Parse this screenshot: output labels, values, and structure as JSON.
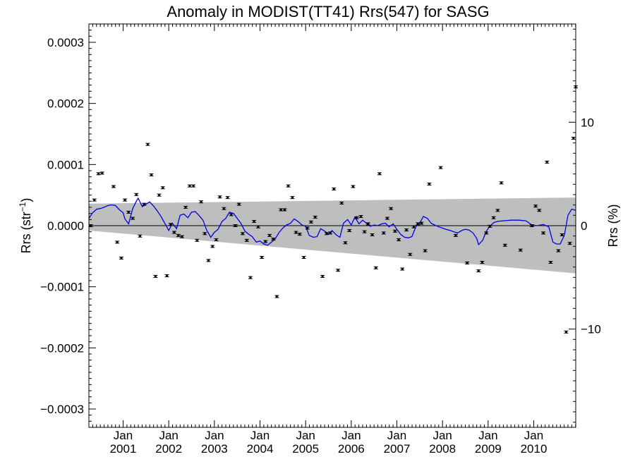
{
  "chart_data": {
    "type": "scatter",
    "title": "Anomaly in MODIST(TT41) Rrs(547) for SASG",
    "ylabel_left": "Rrs (str",
    "ylabel_left_sup": "−1",
    "ylabel_left_close": ")",
    "ylabel_right": "Rrs (%)",
    "ylim_left": [
      -0.00033,
      0.00033
    ],
    "ylim_right": [
      -19.5,
      19.5
    ],
    "xlim": [
      2000.25,
      2010.92
    ],
    "left_ticks": [
      {
        "value": 0.0003,
        "label": "0.0003"
      },
      {
        "value": 0.0002,
        "label": "0.0002"
      },
      {
        "value": 0.0001,
        "label": "0.0001"
      },
      {
        "value": 0.0,
        "label": "0.0000"
      },
      {
        "value": -0.0001,
        "label": "−0.0001"
      },
      {
        "value": -0.0002,
        "label": "−0.0002"
      },
      {
        "value": -0.0003,
        "label": "−0.0003"
      }
    ],
    "right_ticks": [
      {
        "value": 10,
        "label": "10"
      },
      {
        "value": 0,
        "label": "0"
      },
      {
        "value": -10,
        "label": "−10"
      }
    ],
    "x_ticks": [
      {
        "value": 2001.0,
        "month": "Jan",
        "year": "2001"
      },
      {
        "value": 2002.0,
        "month": "Jan",
        "year": "2002"
      },
      {
        "value": 2003.0,
        "month": "Jan",
        "year": "2003"
      },
      {
        "value": 2004.0,
        "month": "Jan",
        "year": "2004"
      },
      {
        "value": 2005.0,
        "month": "Jan",
        "year": "2005"
      },
      {
        "value": 2006.0,
        "month": "Jan",
        "year": "2006"
      },
      {
        "value": 2007.0,
        "month": "Jan",
        "year": "2007"
      },
      {
        "value": 2008.0,
        "month": "Jan",
        "year": "2008"
      },
      {
        "value": 2009.0,
        "month": "Jan",
        "year": "2009"
      },
      {
        "value": 2010.0,
        "month": "Jan",
        "year": "2010"
      }
    ],
    "band": {
      "color": "#bebebe",
      "upper": [
        [
          2000.25,
          3.6e-05
        ],
        [
          2010.92,
          4.6e-05
        ]
      ],
      "lower": [
        [
          2000.25,
          -8e-06
        ],
        [
          2010.92,
          -7.8e-05
        ]
      ]
    },
    "zero_line": {
      "color": "#000000",
      "value": 0
    },
    "series": [
      {
        "kind": "points_with_error",
        "color": "#000000",
        "points": [
          [
            2000.29,
            0.0
          ],
          [
            2000.37,
            4.2e-05
          ],
          [
            2000.46,
            8.5e-05
          ],
          [
            2000.54,
            8.6e-05
          ],
          [
            2000.79,
            6.4e-05
          ],
          [
            2000.87,
            -2.7e-05
          ],
          [
            2000.96,
            -5.3e-05
          ],
          [
            2001.04,
            4.2e-05
          ],
          [
            2001.12,
            2.2e-05
          ],
          [
            2001.21,
            1.2e-05
          ],
          [
            2001.29,
            5.1e-05
          ],
          [
            2001.37,
            -1.7e-05
          ],
          [
            2001.46,
            3.5e-05
          ],
          [
            2001.54,
            0.000133
          ],
          [
            2001.62,
            8.3e-05
          ],
          [
            2001.71,
            -8.3e-05
          ],
          [
            2001.79,
            5e-05
          ],
          [
            2001.87,
            6.2e-05
          ],
          [
            2001.96,
            -8.2e-05
          ],
          [
            2002.04,
            2e-06
          ],
          [
            2002.12,
            -1.1e-05
          ],
          [
            2002.21,
            -1.6e-05
          ],
          [
            2002.29,
            -1.8e-05
          ],
          [
            2002.37,
            3e-05
          ],
          [
            2002.46,
            6.5e-05
          ],
          [
            2002.54,
            6.5e-05
          ],
          [
            2002.62,
            -2.4e-05
          ],
          [
            2002.71,
            3.9e-05
          ],
          [
            2002.79,
            -1.3e-05
          ],
          [
            2002.87,
            -5.7e-05
          ],
          [
            2002.96,
            -3.4e-05
          ],
          [
            2003.04,
            -2.3e-05
          ],
          [
            2003.12,
            4.7e-05
          ],
          [
            2003.21,
            2.8e-05
          ],
          [
            2003.29,
            4.6e-05
          ],
          [
            2003.37,
            1.8e-05
          ],
          [
            2003.46,
            0.0
          ],
          [
            2003.54,
            3.5e-05
          ],
          [
            2003.62,
            -1.3e-05
          ],
          [
            2003.71,
            -2.4e-05
          ],
          [
            2003.79,
            -8.5e-05
          ],
          [
            2003.87,
            7e-06
          ],
          [
            2003.96,
            -2e-06
          ],
          [
            2004.04,
            -5.2e-05
          ],
          [
            2004.12,
            -2.6e-05
          ],
          [
            2004.21,
            -1.6e-05
          ],
          [
            2004.29,
            -2.2e-05
          ],
          [
            2004.37,
            -0.000116
          ],
          [
            2004.46,
            2.6e-05
          ],
          [
            2004.54,
            2.6e-05
          ],
          [
            2004.62,
            6.5e-05
          ],
          [
            2004.71,
            4.6e-05
          ],
          [
            2004.79,
            -1.1e-05
          ],
          [
            2004.87,
            -1.4e-05
          ],
          [
            2004.96,
            -5.2e-05
          ],
          [
            2005.04,
            -4e-06
          ],
          [
            2005.12,
            6e-06
          ],
          [
            2005.21,
            1.4e-05
          ],
          [
            2005.37,
            -8.3e-05
          ],
          [
            2005.46,
            -1.3e-05
          ],
          [
            2005.54,
            -1.2e-05
          ],
          [
            2005.62,
            6e-05
          ],
          [
            2005.71,
            -7.3e-05
          ],
          [
            2005.79,
            3.7e-05
          ],
          [
            2005.87,
            -2.8e-05
          ],
          [
            2005.96,
            -8e-06
          ],
          [
            2006.04,
            6.4e-05
          ],
          [
            2006.12,
            1.3e-05
          ],
          [
            2006.21,
            1.5e-05
          ],
          [
            2006.29,
            -1e-05
          ],
          [
            2006.37,
            3e-06
          ],
          [
            2006.46,
            -1.5e-05
          ],
          [
            2006.54,
            -6.9e-05
          ],
          [
            2006.62,
            8.5e-05
          ],
          [
            2006.71,
            -1.2e-05
          ],
          [
            2006.79,
            1.2e-05
          ],
          [
            2006.87,
            2.8e-05
          ],
          [
            2006.96,
            -9e-06
          ],
          [
            2007.04,
            -2.3e-05
          ],
          [
            2007.12,
            -7.1e-05
          ],
          [
            2007.21,
            -7e-06
          ],
          [
            2007.29,
            -4.7e-05
          ],
          [
            2007.37,
            -2e-06
          ],
          [
            2007.46,
            3e-06
          ],
          [
            2007.54,
            4e-06
          ],
          [
            2007.62,
            -4.1e-05
          ],
          [
            2007.71,
            6.8e-05
          ],
          [
            2007.96,
            9.5e-05
          ],
          [
            2008.29,
            -1.6e-05
          ],
          [
            2008.54,
            -6.1e-05
          ],
          [
            2008.79,
            -7.4e-05
          ],
          [
            2008.87,
            -6e-05
          ],
          [
            2008.96,
            -1.2e-05
          ],
          [
            2009.04,
            -1e-06
          ],
          [
            2009.12,
            1.3e-05
          ],
          [
            2009.21,
            2.5e-05
          ],
          [
            2009.29,
            7e-05
          ],
          [
            2009.37,
            -3.2e-05
          ],
          [
            2009.71,
            -4e-05
          ],
          [
            2009.96,
            0.0
          ],
          [
            2010.04,
            3.2e-05
          ],
          [
            2010.12,
            2.5e-05
          ],
          [
            2010.21,
            -1.2e-05
          ],
          [
            2010.29,
            0.000104
          ],
          [
            2010.37,
            -6e-05
          ],
          [
            2010.54,
            -4.1e-05
          ],
          [
            2010.62,
            -1.5e-05
          ],
          [
            2010.71,
            -0.000174
          ],
          [
            2010.79,
            -2.9e-05
          ],
          [
            2010.87,
            0.000143
          ],
          [
            2010.92,
            0.000227
          ]
        ]
      },
      {
        "kind": "line",
        "color": "#0000e6",
        "points": [
          [
            2000.25,
            1.2e-05
          ],
          [
            2000.33,
            2.1e-05
          ],
          [
            2000.42,
            2.7e-05
          ],
          [
            2000.5,
            2.8e-05
          ],
          [
            2000.58,
            3e-05
          ],
          [
            2000.67,
            3.3e-05
          ],
          [
            2000.75,
            3.4e-05
          ],
          [
            2000.83,
            3.3e-05
          ],
          [
            2000.92,
            2.6e-05
          ],
          [
            2001.0,
            2.1e-05
          ],
          [
            2001.04,
            1.1e-05
          ],
          [
            2001.12,
            3e-06
          ],
          [
            2001.21,
            2.8e-05
          ],
          [
            2001.29,
            4e-05
          ],
          [
            2001.33,
            4.5e-05
          ],
          [
            2001.42,
            3.1e-05
          ],
          [
            2001.5,
            3.5e-05
          ],
          [
            2001.58,
            3.9e-05
          ],
          [
            2001.67,
            3.2e-05
          ],
          [
            2001.75,
            2.4e-05
          ],
          [
            2001.83,
            1.5e-05
          ],
          [
            2001.92,
            3e-06
          ],
          [
            2002.0,
            -8e-06
          ],
          [
            2002.08,
            4e-06
          ],
          [
            2002.17,
            -5e-06
          ],
          [
            2002.25,
            1.7e-05
          ],
          [
            2002.33,
            1.9e-05
          ],
          [
            2002.42,
            1.3e-05
          ],
          [
            2002.5,
            2.2e-05
          ],
          [
            2002.58,
            2.3e-05
          ],
          [
            2002.67,
            1.6e-05
          ],
          [
            2002.75,
            9e-06
          ],
          [
            2002.83,
            -7e-06
          ],
          [
            2002.92,
            -1.9e-05
          ],
          [
            2003.0,
            -1.1e-05
          ],
          [
            2003.08,
            -6e-06
          ],
          [
            2003.17,
            7e-06
          ],
          [
            2003.25,
            1.2e-05
          ],
          [
            2003.33,
            2.2e-05
          ],
          [
            2003.42,
            2e-05
          ],
          [
            2003.5,
            1.2e-05
          ],
          [
            2003.58,
            4e-06
          ],
          [
            2003.67,
            -9e-06
          ],
          [
            2003.75,
            -1.4e-05
          ],
          [
            2003.83,
            -1.8e-05
          ],
          [
            2003.92,
            -2.7e-05
          ],
          [
            2004.0,
            -2.5e-05
          ],
          [
            2004.08,
            -3e-05
          ],
          [
            2004.17,
            -3.2e-05
          ],
          [
            2004.25,
            -2.7e-05
          ],
          [
            2004.33,
            -2.2e-05
          ],
          [
            2004.42,
            -1.1e-05
          ],
          [
            2004.5,
            -4e-06
          ],
          [
            2004.58,
            1e-06
          ],
          [
            2004.67,
            4e-06
          ],
          [
            2004.75,
            1.1e-05
          ],
          [
            2004.83,
            7e-06
          ],
          [
            2004.92,
            1e-06
          ],
          [
            2005.0,
            -1e-06
          ],
          [
            2005.08,
            -1.6e-05
          ],
          [
            2005.17,
            -1.9e-05
          ],
          [
            2005.25,
            -1.8e-05
          ],
          [
            2005.33,
            -5e-06
          ],
          [
            2005.42,
            -9e-06
          ],
          [
            2005.5,
            -1.4e-05
          ],
          [
            2005.58,
            -8e-06
          ],
          [
            2005.67,
            -1.5e-05
          ],
          [
            2005.75,
            -1.9e-05
          ],
          [
            2005.83,
            4e-06
          ],
          [
            2005.92,
            1e-05
          ],
          [
            2006.0,
            1e-06
          ],
          [
            2006.08,
            1.4e-05
          ],
          [
            2006.17,
            3e-06
          ],
          [
            2006.25,
            9e-06
          ],
          [
            2006.33,
            4e-06
          ],
          [
            2006.42,
            -1e-06
          ],
          [
            2006.5,
            1e-06
          ],
          [
            2006.58,
            0.0
          ],
          [
            2006.67,
            3e-06
          ],
          [
            2006.75,
            4e-06
          ],
          [
            2006.83,
            -2e-06
          ],
          [
            2006.92,
            3e-06
          ],
          [
            2007.0,
            -6e-06
          ],
          [
            2007.08,
            -1.4e-05
          ],
          [
            2007.17,
            -1.9e-05
          ],
          [
            2007.25,
            -2e-05
          ],
          [
            2007.33,
            -1.8e-05
          ],
          [
            2007.42,
            -1e-06
          ],
          [
            2007.5,
            4e-06
          ],
          [
            2007.58,
            1.5e-05
          ],
          [
            2007.67,
            1.2e-05
          ],
          [
            2007.75,
            4e-06
          ],
          [
            2007.83,
            1e-06
          ],
          [
            2007.92,
            -2e-06
          ],
          [
            2008.0,
            -4e-06
          ],
          [
            2008.08,
            -6e-06
          ],
          [
            2008.17,
            -8e-06
          ],
          [
            2008.25,
            -1e-05
          ],
          [
            2008.33,
            -1.2e-05
          ],
          [
            2008.42,
            -8e-06
          ],
          [
            2008.5,
            -6e-06
          ],
          [
            2008.58,
            -7e-06
          ],
          [
            2008.67,
            -1.2e-05
          ],
          [
            2008.75,
            -2.1e-05
          ],
          [
            2008.79,
            -3.1e-05
          ],
          [
            2008.88,
            -2.4e-05
          ],
          [
            2008.96,
            -9e-06
          ],
          [
            2009.04,
            -1e-06
          ],
          [
            2009.12,
            5e-06
          ],
          [
            2009.21,
            7e-06
          ],
          [
            2009.33,
            8e-06
          ],
          [
            2009.5,
            9e-06
          ],
          [
            2009.67,
            9e-06
          ],
          [
            2009.83,
            8e-06
          ],
          [
            2009.96,
            1e-06
          ],
          [
            2010.08,
            0.0
          ],
          [
            2010.21,
            2e-06
          ],
          [
            2010.33,
            -2e-06
          ],
          [
            2010.42,
            -2.7e-05
          ],
          [
            2010.5,
            -3e-05
          ],
          [
            2010.58,
            -3e-05
          ],
          [
            2010.67,
            -1.6e-05
          ],
          [
            2010.75,
            1.7e-05
          ],
          [
            2010.83,
            2.7e-05
          ],
          [
            2010.92,
            2.5e-05
          ]
        ]
      }
    ]
  }
}
